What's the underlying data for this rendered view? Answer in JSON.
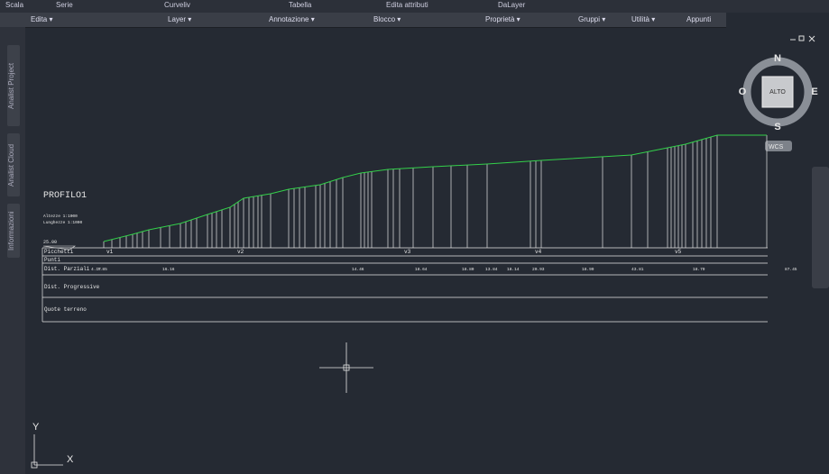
{
  "ribbon": {
    "top_items": [
      "Scala",
      "Serie",
      "Curveliv",
      "Tabella",
      "Edita attributi",
      "DaLayer"
    ],
    "panels": [
      "Edita ▾",
      "Layer ▾",
      "Annotazione ▾",
      "Blocco ▾",
      "Proprietà ▾",
      "Gruppi ▾",
      "Utilità ▾",
      "Appunti"
    ]
  },
  "side_tabs": [
    "Analist Project",
    "Analist Cloud",
    "Informazioni"
  ],
  "viewcube": {
    "north": "N",
    "south": "S",
    "west": "O",
    "east": "E",
    "face": "ALTO",
    "ucs": "WCS"
  },
  "drawing": {
    "title": "PROFILO1",
    "scales": [
      "Altezze 1:1000",
      "Lunghezze 1:1000"
    ],
    "datum": "25.00",
    "rows": [
      "Picchetti",
      "Punti",
      "Dist. Parziali",
      "Dist. Progressive",
      "Quote terreno"
    ],
    "stations": [
      "v1",
      "v2",
      "v3",
      "v4",
      "v5"
    ],
    "partial_distances": [
      "4.17",
      "7.85",
      "16.16",
      "14.46",
      "18.64",
      "18.80",
      "13.84",
      "18.14",
      "20.93",
      "18.99",
      "43.81",
      "18.79",
      "87.45"
    ]
  },
  "axes": {
    "y": "Y",
    "x": "X"
  }
}
